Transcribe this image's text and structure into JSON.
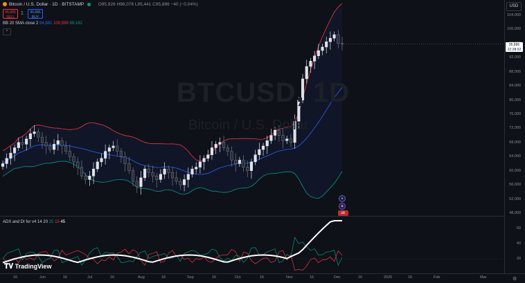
{
  "legend": {
    "symbol": "Bitcoin / U.S. Dollar · 1D · BITSTAMP",
    "ohlc": "O95,926 H96,076 L95,441 C95,886 −40 (−0.04%)",
    "sell_price": "95,885",
    "sell_label": "SELL",
    "buy_price": "95,886",
    "buy_label": "BUY",
    "qty": "1",
    "bb_name": "BB 20 SMA close 2",
    "bb_basis": "94,881",
    "bb_upper": "100,599",
    "bb_lower": "89,162",
    "collapse": "^"
  },
  "indicator_legend": {
    "name": "ADX and DI for v4",
    "p1": "14 20",
    "p2": "25",
    "p3": "15",
    "p4": "45"
  },
  "watermark": {
    "symbol": "BTCUSD, 1D",
    "name": "Bitcoin / U.S. Dollar"
  },
  "currency": "USD",
  "price_axis": [
    "104,000",
    "100,000",
    "96,000",
    "92,000",
    "88,000",
    "84,000",
    "80,000",
    "76,000",
    "72,000",
    "68,000",
    "64,000",
    "60,000",
    "56,000",
    "52,000",
    "48,000"
  ],
  "last_price": {
    "price": "95,886",
    "countdown": "22:28:02"
  },
  "indicator_axis": [
    "60",
    "40",
    "20"
  ],
  "time_axis": [
    "16",
    "Jun",
    "16",
    "Jul",
    "16",
    "Aug",
    "16",
    "Sep",
    "16",
    "Oct",
    "16",
    "Nov",
    "16",
    "Dec",
    "16",
    "2025",
    "16",
    "Feb",
    "Mar"
  ],
  "logo": "TradingView",
  "colors": {
    "bg": "#0e1117",
    "up": "#d1d4dc",
    "bb_upper": "#f23645",
    "bb_basis": "#2962ff",
    "bb_lower": "#089981",
    "adx": "#ffffff"
  },
  "chart_data": {
    "type": "candlestick",
    "symbol": "BTCUSD",
    "interval": "1D",
    "ylim": [
      48000,
      104000
    ],
    "series": [
      {
        "name": "close",
        "values": [
          62000,
          63500,
          65000,
          66500,
          68000,
          67500,
          69000,
          70500,
          71000,
          69500,
          68000,
          67000,
          66000,
          67500,
          68500,
          67000,
          65500,
          64000,
          62500,
          61000,
          58500,
          57500,
          58500,
          60500,
          62500,
          63500,
          65500,
          66500,
          67000,
          65500,
          64000,
          62000,
          60000,
          57000,
          55500,
          58000,
          60500,
          59500,
          58500,
          57500,
          59000,
          60500,
          59500,
          58000,
          57000,
          56000,
          57500,
          59000,
          60500,
          61000,
          62500,
          63500,
          64500,
          66500,
          67500,
          68000,
          66500,
          65500,
          63000,
          62000,
          63000,
          61000,
          60000,
          62500,
          64500,
          66000,
          67000,
          68500,
          70000,
          71500,
          70000,
          68500,
          69000,
          68000,
          74000,
          80000,
          86000,
          89500,
          91000,
          92500,
          94000,
          95000,
          96500,
          97500,
          98500,
          96000,
          95886
        ]
      }
    ]
  }
}
